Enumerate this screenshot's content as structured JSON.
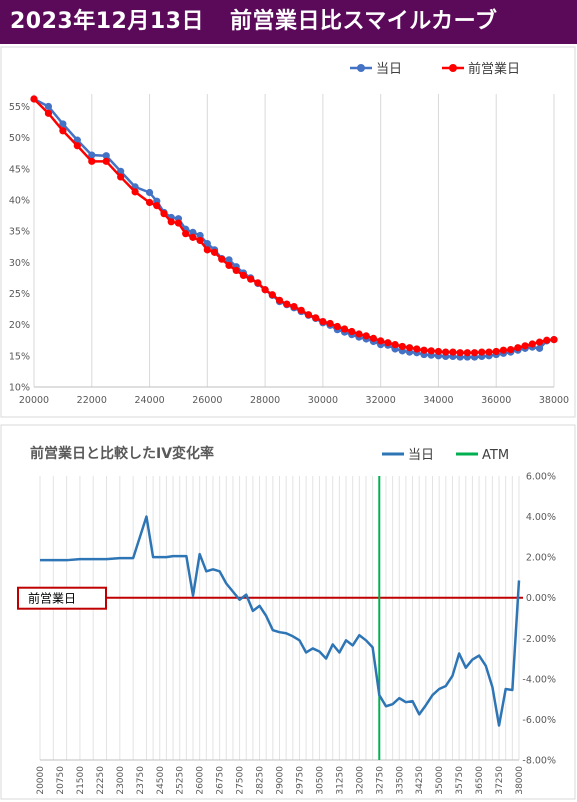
{
  "header": {
    "date": "2023年12月13日",
    "title": "前営業日比スマイルカーブ"
  },
  "colors": {
    "header_bg": "#5b0a59",
    "today": "#4472c4",
    "prev": "#ff0000",
    "iv_line": "#2e75b6",
    "atm": "#00b050",
    "zero_line": "#c00000"
  },
  "chart_data": [
    {
      "type": "line",
      "legend": [
        "当日",
        "前営業日"
      ],
      "legend_position": "top-right",
      "xlim": [
        20000,
        38000
      ],
      "ylim": [
        10,
        57
      ],
      "x_ticks": [
        "20000",
        "22000",
        "24000",
        "26000",
        "28000",
        "30000",
        "32000",
        "34000",
        "36000",
        "38000"
      ],
      "y_ticks": [
        "10%",
        "15%",
        "20%",
        "25%",
        "30%",
        "35%",
        "40%",
        "45%",
        "50%",
        "55%"
      ],
      "grid": "vertical",
      "series": [
        {
          "name": "当日",
          "color": "#4472c4",
          "x": [
            20000,
            20500,
            21000,
            21500,
            22000,
            22500,
            23000,
            23500,
            24000,
            24250,
            24500,
            24750,
            25000,
            25250,
            25500,
            25750,
            26000,
            26250,
            26500,
            26750,
            27000,
            27250,
            27500,
            27750,
            28000,
            28250,
            28500,
            28750,
            29000,
            29250,
            29500,
            29750,
            30000,
            30250,
            30500,
            30750,
            31000,
            31250,
            31500,
            31750,
            32000,
            32250,
            32500,
            32750,
            33000,
            33250,
            33500,
            33750,
            34000,
            34250,
            34500,
            34750,
            35000,
            35250,
            35500,
            35750,
            36000,
            36250,
            36500,
            36750,
            37000,
            37250,
            37500,
            37750,
            38000
          ],
          "values": [
            56.2,
            55.0,
            52.2,
            49.6,
            47.2,
            47.1,
            44.6,
            42.1,
            41.2,
            39.8,
            38.0,
            37.2,
            37.0,
            35.3,
            34.8,
            34.3,
            33.0,
            32.0,
            30.6,
            30.4,
            29.3,
            28.3,
            27.5,
            26.6,
            25.6,
            24.7,
            23.7,
            23.2,
            22.7,
            22.1,
            21.5,
            21.0,
            20.3,
            19.9,
            19.2,
            18.8,
            18.4,
            18.0,
            17.7,
            17.3,
            16.8,
            16.7,
            16.1,
            15.8,
            15.6,
            15.5,
            15.2,
            15.1,
            15.0,
            14.9,
            14.9,
            14.8,
            14.8,
            14.8,
            14.9,
            15.0,
            15.2,
            15.4,
            15.6,
            15.9,
            16.2,
            16.4,
            16.2,
            17.4,
            17.6
          ]
        },
        {
          "name": "前営業日",
          "color": "#ff0000",
          "x": [
            20000,
            20500,
            21000,
            21500,
            22000,
            22500,
            23000,
            23500,
            24000,
            24250,
            24500,
            24750,
            25000,
            25250,
            25500,
            25750,
            26000,
            26250,
            26500,
            26750,
            27000,
            27250,
            27500,
            27750,
            28000,
            28250,
            28500,
            28750,
            29000,
            29250,
            29500,
            29750,
            30000,
            30250,
            30500,
            30750,
            31000,
            31250,
            31500,
            31750,
            32000,
            32250,
            32500,
            32750,
            33000,
            33250,
            33500,
            33750,
            34000,
            34250,
            34500,
            34750,
            35000,
            35250,
            35500,
            35750,
            36000,
            36250,
            36500,
            36750,
            37000,
            37250,
            37500,
            37750,
            38000
          ],
          "values": [
            56.2,
            53.9,
            51.1,
            48.7,
            46.2,
            46.2,
            43.7,
            41.3,
            39.6,
            39.1,
            37.8,
            36.5,
            36.3,
            34.6,
            34.0,
            33.5,
            32.0,
            31.6,
            30.5,
            29.5,
            28.7,
            27.9,
            27.3,
            26.7,
            25.6,
            24.8,
            23.9,
            23.3,
            22.9,
            22.3,
            21.6,
            21.1,
            20.5,
            20.2,
            19.7,
            19.3,
            18.9,
            18.5,
            18.2,
            17.8,
            17.4,
            17.1,
            16.8,
            16.5,
            16.3,
            16.1,
            15.9,
            15.8,
            15.7,
            15.6,
            15.6,
            15.5,
            15.5,
            15.5,
            15.6,
            15.6,
            15.7,
            15.9,
            16.0,
            16.3,
            16.6,
            16.9,
            17.2,
            17.5,
            17.6
          ]
        }
      ]
    },
    {
      "type": "line",
      "title": "前営業日と比較したIV変化率",
      "legend": [
        "当日",
        "ATM"
      ],
      "legend_position": "top-right",
      "ylim": [
        -8,
        6
      ],
      "y_ticks": [
        "6.00%",
        "4.00%",
        "2.00%",
        "0.00%",
        "-2.00%",
        "-4.00%",
        "-6.00%",
        "-8.00%"
      ],
      "x_ticks": [
        "20000",
        "20750",
        "21500",
        "22250",
        "23000",
        "23750",
        "24500",
        "25250",
        "26000",
        "26750",
        "27500",
        "28250",
        "29000",
        "29750",
        "30500",
        "31250",
        "32000",
        "32750",
        "33500",
        "34250",
        "35000",
        "35750",
        "36500",
        "37250",
        "38000"
      ],
      "atm_strike": 32750,
      "annotation": "前営業日",
      "grid": "vertical",
      "series": [
        {
          "name": "当日",
          "color": "#2e75b6",
          "x": [
            20000,
            20500,
            21000,
            21500,
            22000,
            22500,
            23000,
            23500,
            24000,
            24250,
            24500,
            24750,
            25000,
            25250,
            25500,
            25750,
            26000,
            26250,
            26500,
            26750,
            27000,
            27250,
            27500,
            27750,
            28000,
            28250,
            28500,
            28750,
            29000,
            29250,
            29500,
            29750,
            30000,
            30250,
            30500,
            30750,
            31000,
            31250,
            31500,
            31750,
            32000,
            32250,
            32500,
            32750,
            33000,
            33250,
            33500,
            33750,
            34000,
            34250,
            34500,
            34750,
            35000,
            35250,
            35500,
            35750,
            36000,
            36250,
            36500,
            36750,
            37000,
            37250,
            37500,
            37750,
            38000
          ],
          "values": [
            1.85,
            1.85,
            1.85,
            1.9,
            1.9,
            1.9,
            1.95,
            1.95,
            4.0,
            2.0,
            2.0,
            2.0,
            2.05,
            2.05,
            2.05,
            0.1,
            2.15,
            1.3,
            1.4,
            1.3,
            0.7,
            0.3,
            -0.1,
            0.15,
            -0.65,
            -0.4,
            -0.9,
            -1.6,
            -1.7,
            -1.75,
            -1.9,
            -2.1,
            -2.7,
            -2.5,
            -2.65,
            -3.0,
            -2.3,
            -2.7,
            -2.1,
            -2.35,
            -1.85,
            -2.1,
            -2.45,
            -4.8,
            -5.35,
            -5.25,
            -4.95,
            -5.15,
            -5.1,
            -5.75,
            -5.3,
            -4.8,
            -4.5,
            -4.35,
            -3.85,
            -2.75,
            -3.45,
            -3.05,
            -2.85,
            -3.35,
            -4.4,
            -6.3,
            -4.5,
            -4.55,
            0.85
          ]
        }
      ]
    }
  ]
}
